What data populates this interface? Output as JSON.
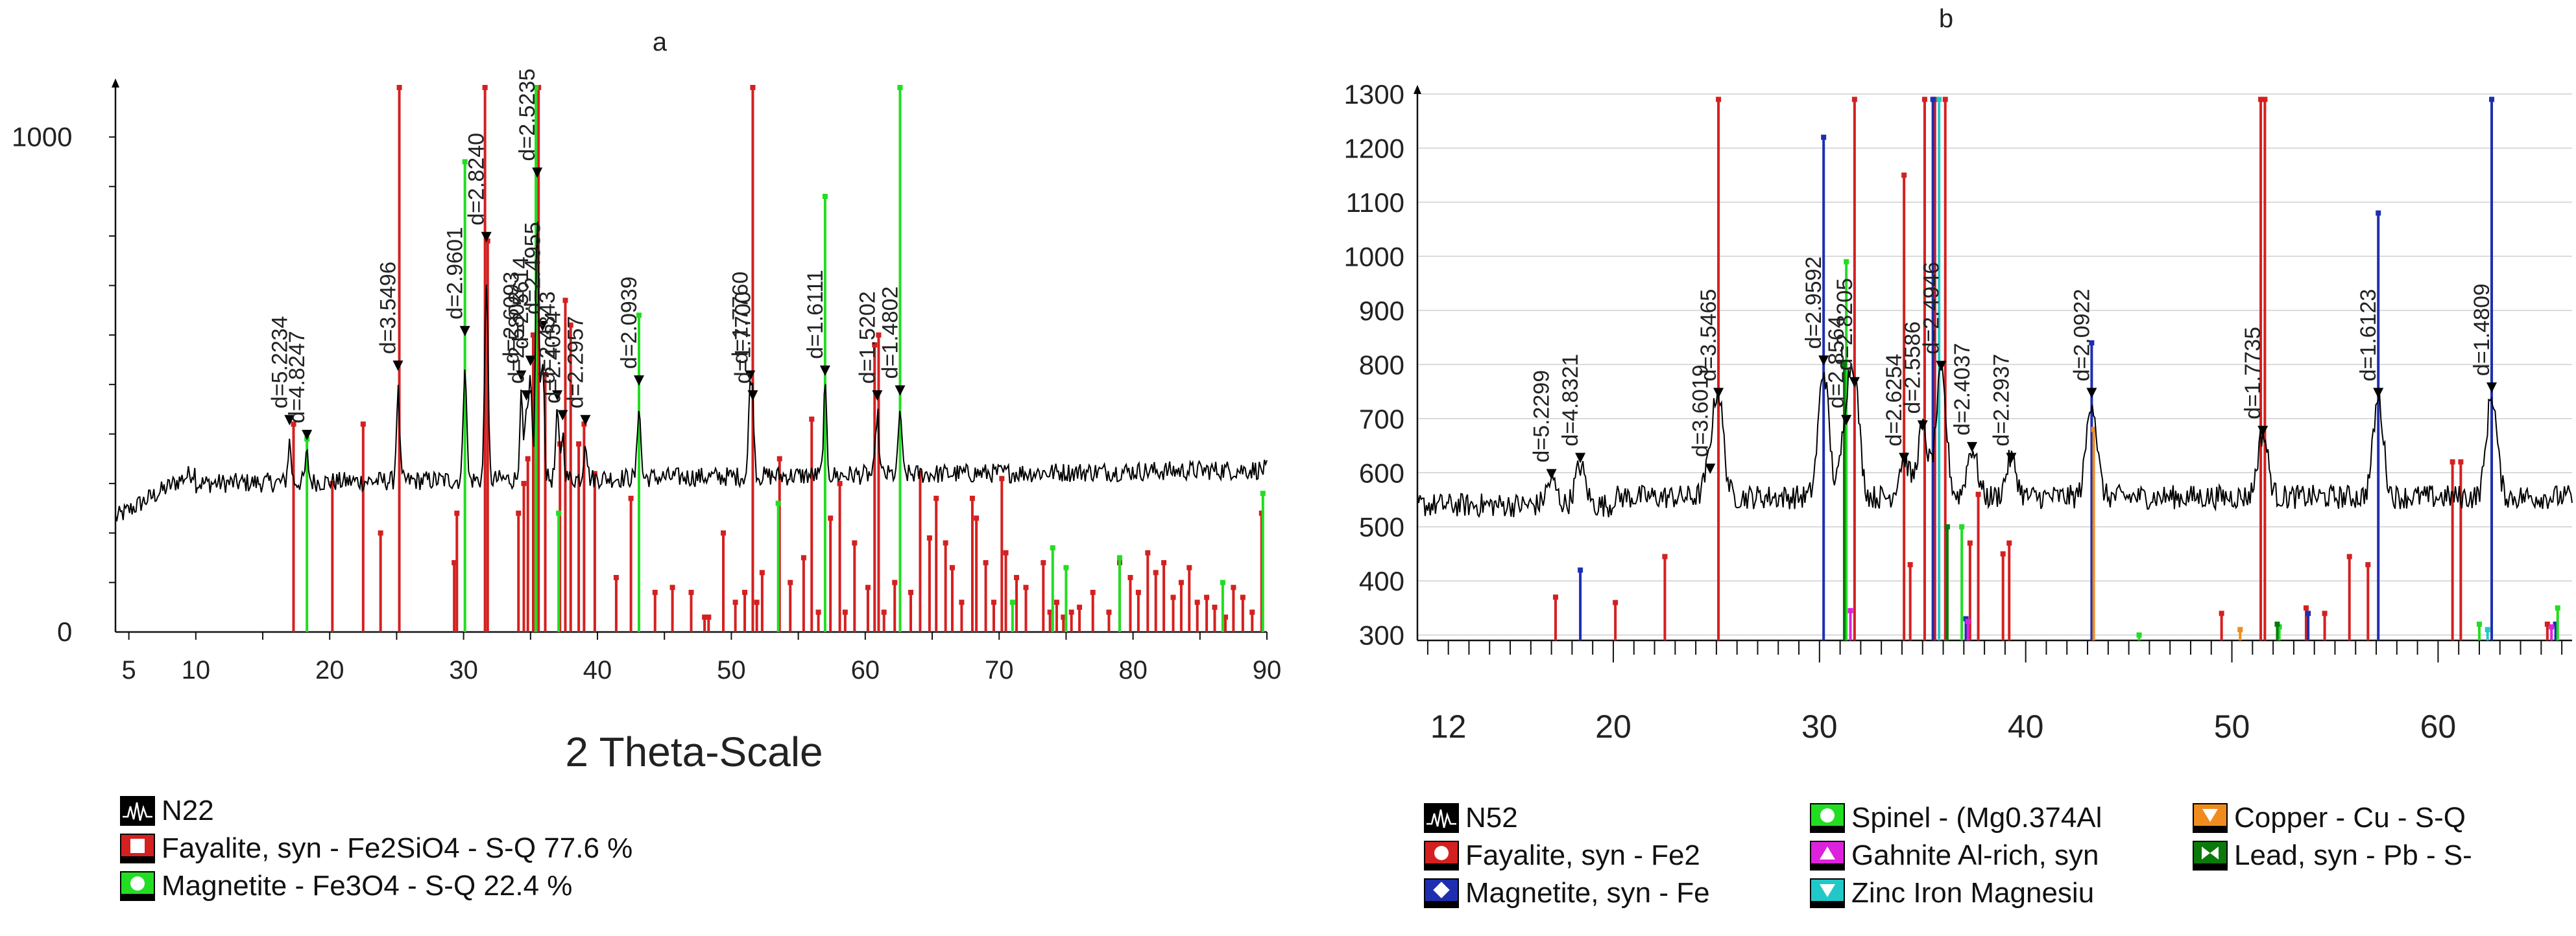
{
  "chart_data": [
    {
      "panel": "a",
      "type": "bar",
      "title": "a",
      "xlabel": "2 Theta-Scale",
      "ylabel": "",
      "xlim": [
        4,
        90
      ],
      "ylim": [
        0,
        1100
      ],
      "x_ticks": [
        5,
        10,
        20,
        30,
        40,
        50,
        60,
        70,
        80,
        90
      ],
      "y_ticks": [
        {
          "value": 0,
          "label": "0"
        },
        {
          "value": 1000,
          "label": "1000"
        }
      ],
      "pattern": {
        "name": "N22",
        "color": "#000000"
      },
      "peaks": [
        {
          "x": 17.0,
          "label": "d=5.2234",
          "y": 420
        },
        {
          "x": 18.3,
          "label": "d=4.8247",
          "y": 390
        },
        {
          "x": 25.1,
          "label": "d=3.5496",
          "y": 530
        },
        {
          "x": 30.1,
          "label": "d=2.9601",
          "y": 600
        },
        {
          "x": 31.7,
          "label": "d=2.8240",
          "y": 790
        },
        {
          "x": 34.3,
          "label": "d=2.6093",
          "y": 510
        },
        {
          "x": 34.7,
          "label": "d=2.5802",
          "y": 470
        },
        {
          "x": 35.0,
          "label": "d=2.5614",
          "y": 540
        },
        {
          "x": 35.5,
          "label": "d=2.5235",
          "y": 920
        },
        {
          "x": 35.9,
          "label": "d=2.4955",
          "y": 610
        },
        {
          "x": 37.0,
          "label": "d=2.4343",
          "y": 470
        },
        {
          "x": 37.4,
          "label": "d=2.4034",
          "y": 430
        },
        {
          "x": 39.1,
          "label": "d=2.2957",
          "y": 420
        },
        {
          "x": 43.1,
          "label": "d=2.0939",
          "y": 500
        },
        {
          "x": 51.4,
          "label": "d=1.7760",
          "y": 510
        },
        {
          "x": 51.6,
          "label": "d=1.7700",
          "y": 470
        },
        {
          "x": 57.0,
          "label": "d=1.6111",
          "y": 520
        },
        {
          "x": 60.9,
          "label": "d=1.5202",
          "y": 470
        },
        {
          "x": 62.6,
          "label": "d=1.4802",
          "y": 480
        }
      ],
      "series": [
        {
          "name": "Fayalite, syn - Fe2SiO4 - S-Q 77.6 %",
          "color": "#d42020",
          "sticks": [
            [
              17.3,
              420
            ],
            [
              20.2,
              300
            ],
            [
              22.5,
              420
            ],
            [
              23.8,
              200
            ],
            [
              25.2,
              1150
            ],
            [
              29.3,
              140
            ],
            [
              29.5,
              240
            ],
            [
              31.6,
              1150
            ],
            [
              31.8,
              790
            ],
            [
              34.1,
              240
            ],
            [
              34.5,
              300
            ],
            [
              34.8,
              350
            ],
            [
              35.2,
              600
            ],
            [
              35.6,
              1150
            ],
            [
              36.1,
              520
            ],
            [
              37.2,
              380
            ],
            [
              37.6,
              670
            ],
            [
              38.0,
              620
            ],
            [
              38.6,
              380
            ],
            [
              39.0,
              420
            ],
            [
              39.8,
              320
            ],
            [
              41.4,
              110
            ],
            [
              42.5,
              270
            ],
            [
              44.3,
              80
            ],
            [
              45.6,
              90
            ],
            [
              47.0,
              80
            ],
            [
              48.0,
              30
            ],
            [
              48.3,
              30
            ],
            [
              49.4,
              200
            ],
            [
              50.3,
              60
            ],
            [
              51.0,
              80
            ],
            [
              51.6,
              1150
            ],
            [
              51.9,
              60
            ],
            [
              52.3,
              120
            ],
            [
              53.6,
              350
            ],
            [
              54.4,
              100
            ],
            [
              55.4,
              150
            ],
            [
              56.0,
              430
            ],
            [
              56.5,
              40
            ],
            [
              57.4,
              230
            ],
            [
              58.1,
              300
            ],
            [
              58.5,
              40
            ],
            [
              59.2,
              180
            ],
            [
              60.2,
              90
            ],
            [
              60.7,
              580
            ],
            [
              61.0,
              600
            ],
            [
              61.4,
              40
            ],
            [
              62.2,
              100
            ],
            [
              63.4,
              80
            ],
            [
              64.1,
              320
            ],
            [
              64.8,
              190
            ],
            [
              65.3,
              270
            ],
            [
              66.0,
              180
            ],
            [
              66.5,
              130
            ],
            [
              67.2,
              60
            ],
            [
              68.0,
              270
            ],
            [
              68.3,
              230
            ],
            [
              69.0,
              140
            ],
            [
              69.6,
              60
            ],
            [
              70.2,
              310
            ],
            [
              70.5,
              160
            ],
            [
              71.3,
              110
            ],
            [
              72.0,
              90
            ],
            [
              73.3,
              140
            ],
            [
              73.8,
              40
            ],
            [
              74.3,
              60
            ],
            [
              74.8,
              30
            ],
            [
              75.4,
              40
            ],
            [
              76.0,
              50
            ],
            [
              77.0,
              80
            ],
            [
              78.2,
              40
            ],
            [
              79.0,
              140
            ],
            [
              79.8,
              110
            ],
            [
              80.4,
              80
            ],
            [
              81.1,
              160
            ],
            [
              81.7,
              120
            ],
            [
              82.3,
              140
            ],
            [
              83.0,
              70
            ],
            [
              83.6,
              100
            ],
            [
              84.2,
              130
            ],
            [
              84.8,
              60
            ],
            [
              85.5,
              70
            ],
            [
              86.1,
              50
            ],
            [
              86.9,
              30
            ],
            [
              87.5,
              90
            ],
            [
              88.2,
              70
            ],
            [
              88.9,
              40
            ],
            [
              89.6,
              240
            ]
          ]
        },
        {
          "name": "Magnetite - Fe3O4 - S-Q 22.4 %",
          "color": "#22dd22",
          "sticks": [
            [
              18.3,
              390
            ],
            [
              30.1,
              950
            ],
            [
              35.4,
              1150
            ],
            [
              37.1,
              240
            ],
            [
              43.1,
              640
            ],
            [
              53.5,
              260
            ],
            [
              57.0,
              880
            ],
            [
              62.6,
              1100
            ],
            [
              71.0,
              60
            ],
            [
              74.0,
              170
            ],
            [
              75.0,
              130
            ],
            [
              79.0,
              150
            ],
            [
              86.7,
              100
            ],
            [
              89.7,
              280
            ]
          ]
        }
      ],
      "legend": [
        {
          "symbol": "pattern",
          "color": "#000000",
          "label": "N22"
        },
        {
          "symbol": "square",
          "color": "#d42020",
          "label": "Fayalite, syn - Fe2SiO4 - S-Q 77.6 %"
        },
        {
          "symbol": "circle",
          "color": "#22dd22",
          "label": "Magnetite - Fe3O4 - S-Q 22.4 %"
        }
      ]
    },
    {
      "panel": "b",
      "type": "bar",
      "title": "b",
      "xlabel": "",
      "ylabel": "",
      "xlim": [
        10.5,
        66.5
      ],
      "ylim": [
        290,
        1300
      ],
      "x_ticks": [
        12,
        20,
        30,
        40,
        50,
        60
      ],
      "y_ticks": [
        300,
        400,
        500,
        600,
        700,
        800,
        900,
        1000,
        1100,
        1200,
        1300
      ],
      "pattern": {
        "name": "N52",
        "color": "#000000"
      },
      "peaks": [
        {
          "x": 17.0,
          "label": "d=5.2299",
          "y": 590
        },
        {
          "x": 18.4,
          "label": "d=4.8321",
          "y": 620
        },
        {
          "x": 24.7,
          "label": "d=3.6019",
          "y": 600
        },
        {
          "x": 25.1,
          "label": "d=3.5465",
          "y": 740
        },
        {
          "x": 30.2,
          "label": "d=2.9592",
          "y": 800
        },
        {
          "x": 31.3,
          "label": "d=2.8564",
          "y": 690
        },
        {
          "x": 31.7,
          "label": "d=2.8205",
          "y": 760
        },
        {
          "x": 34.1,
          "label": "d=2.6254",
          "y": 620
        },
        {
          "x": 35.0,
          "label": "d=2.5586",
          "y": 680
        },
        {
          "x": 35.9,
          "label": "d=2.4946",
          "y": 790
        },
        {
          "x": 37.4,
          "label": "d=2.4037",
          "y": 640
        },
        {
          "x": 39.3,
          "label": "d=2.2937",
          "y": 620
        },
        {
          "x": 43.2,
          "label": "d=2.0922",
          "y": 740
        },
        {
          "x": 51.5,
          "label": "d=1.7735",
          "y": 670
        },
        {
          "x": 57.1,
          "label": "d=1.6123",
          "y": 740
        },
        {
          "x": 62.6,
          "label": "d=1.4809",
          "y": 750
        }
      ],
      "series": [
        {
          "name": "Fayalite, syn - Fe2",
          "color": "#d42020",
          "sticks": [
            [
              17.2,
              370
            ],
            [
              20.1,
              360
            ],
            [
              22.5,
              445
            ],
            [
              25.1,
              1290
            ],
            [
              31.7,
              1290
            ],
            [
              34.1,
              1150
            ],
            [
              34.4,
              430
            ],
            [
              35.1,
              1290
            ],
            [
              35.6,
              1290
            ],
            [
              36.1,
              1290
            ],
            [
              37.3,
              470
            ],
            [
              37.7,
              560
            ],
            [
              38.9,
              450
            ],
            [
              39.2,
              470
            ],
            [
              49.5,
              340
            ],
            [
              51.4,
              1290
            ],
            [
              51.6,
              1290
            ],
            [
              53.6,
              350
            ],
            [
              54.5,
              340
            ],
            [
              55.7,
              445
            ],
            [
              56.6,
              430
            ],
            [
              60.7,
              620
            ],
            [
              61.1,
              620
            ],
            [
              65.3,
              320
            ]
          ]
        },
        {
          "name": "Magnetite, syn - Fe",
          "color": "#1d2fb0",
          "sticks": [
            [
              18.4,
              420
            ],
            [
              30.2,
              1220
            ],
            [
              35.5,
              1290
            ],
            [
              37.1,
              330
            ],
            [
              43.2,
              840
            ],
            [
              53.7,
              340
            ],
            [
              57.1,
              1080
            ],
            [
              62.6,
              1290
            ],
            [
              65.7,
              320
            ]
          ]
        },
        {
          "name": "Spinel - (Mg0.374Al",
          "color": "#22dd22",
          "sticks": [
            [
              31.3,
              990
            ],
            [
              36.9,
              500
            ],
            [
              45.5,
              300
            ],
            [
              52.3,
              315
            ],
            [
              62.0,
              320
            ],
            [
              65.8,
              350
            ]
          ]
        },
        {
          "name": "Gahnite Al-rich, syn",
          "color": "#dd22dd",
          "sticks": [
            [
              31.5,
              345
            ],
            [
              37.2,
              325
            ],
            [
              65.5,
              315
            ]
          ]
        },
        {
          "name": "Zinc Iron Magnesiu",
          "color": "#22c8c8",
          "sticks": [
            [
              35.8,
              1290
            ],
            [
              62.4,
              310
            ]
          ]
        },
        {
          "name": "Copper - Cu - S-Q",
          "color": "#f08c1e",
          "sticks": [
            [
              43.3,
              680
            ],
            [
              50.4,
              310
            ]
          ]
        },
        {
          "name": "Lead, syn - Pb - S-",
          "color": "#0a7a0a",
          "sticks": [
            [
              31.2,
              800
            ],
            [
              36.2,
              500
            ],
            [
              52.2,
              320
            ]
          ]
        }
      ],
      "legend": [
        {
          "symbol": "pattern",
          "color": "#000000",
          "label": "N52"
        },
        {
          "symbol": "circle",
          "color": "#d42020",
          "label": "Fayalite, syn - Fe2"
        },
        {
          "symbol": "diamond",
          "color": "#1d2fb0",
          "label": "Magnetite, syn - Fe"
        },
        {
          "symbol": "circle",
          "color": "#22dd22",
          "label": "Spinel - (Mg0.374Al"
        },
        {
          "symbol": "triangle-up",
          "color": "#dd22dd",
          "label": "Gahnite Al-rich, syn"
        },
        {
          "symbol": "triangle-down",
          "color": "#22c8c8",
          "label": "Zinc Iron Magnesiu"
        },
        {
          "symbol": "triangle-down",
          "color": "#f08c1e",
          "label": "Copper - Cu - S-Q"
        },
        {
          "symbol": "bowtie",
          "color": "#0a7a0a",
          "label": "Lead, syn - Pb - S-"
        }
      ]
    }
  ]
}
